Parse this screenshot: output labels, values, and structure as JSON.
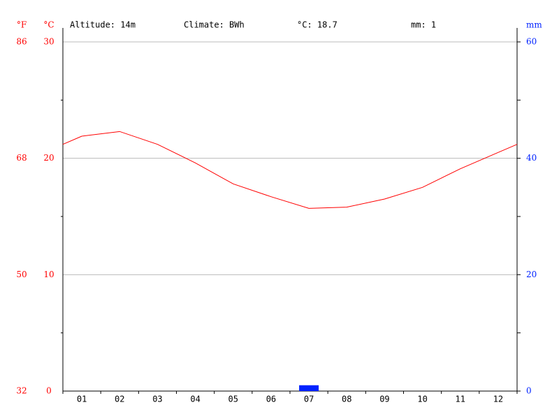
{
  "chart_data": {
    "type": "line",
    "annotations": [
      "Altitude: 14m",
      "Climate: BWh",
      "°C: 18.7",
      "mm: 1"
    ],
    "ylabel": "°C",
    "y2label": "mm",
    "flabel": "°F",
    "categories": [
      "01",
      "02",
      "03",
      "04",
      "05",
      "06",
      "07",
      "08",
      "09",
      "10",
      "11",
      "12"
    ],
    "series": [
      {
        "name": "°C",
        "type": "line",
        "color": "#ff0000",
        "values": [
          21.9,
          22.3,
          21.2,
          19.6,
          17.8,
          16.7,
          15.7,
          15.8,
          16.5,
          17.5,
          19.1,
          20.5
        ]
      },
      {
        "name": "mm",
        "type": "bar",
        "axis": "y2",
        "color": "#0022ff",
        "values": [
          0,
          0,
          0,
          0,
          0,
          0,
          1,
          0,
          0,
          0,
          0,
          0
        ]
      }
    ],
    "ylim": [
      0,
      30
    ],
    "yticks": [
      0,
      10,
      20,
      30
    ],
    "yminorticks": [
      5,
      15,
      25
    ],
    "y2lim": [
      0,
      60
    ],
    "y2ticks": [
      0,
      20,
      40,
      60
    ],
    "y2minorticks": [
      10,
      30,
      50
    ],
    "flim": [
      32,
      86
    ],
    "fticks": [
      32,
      50,
      68,
      86
    ],
    "grid": true
  }
}
